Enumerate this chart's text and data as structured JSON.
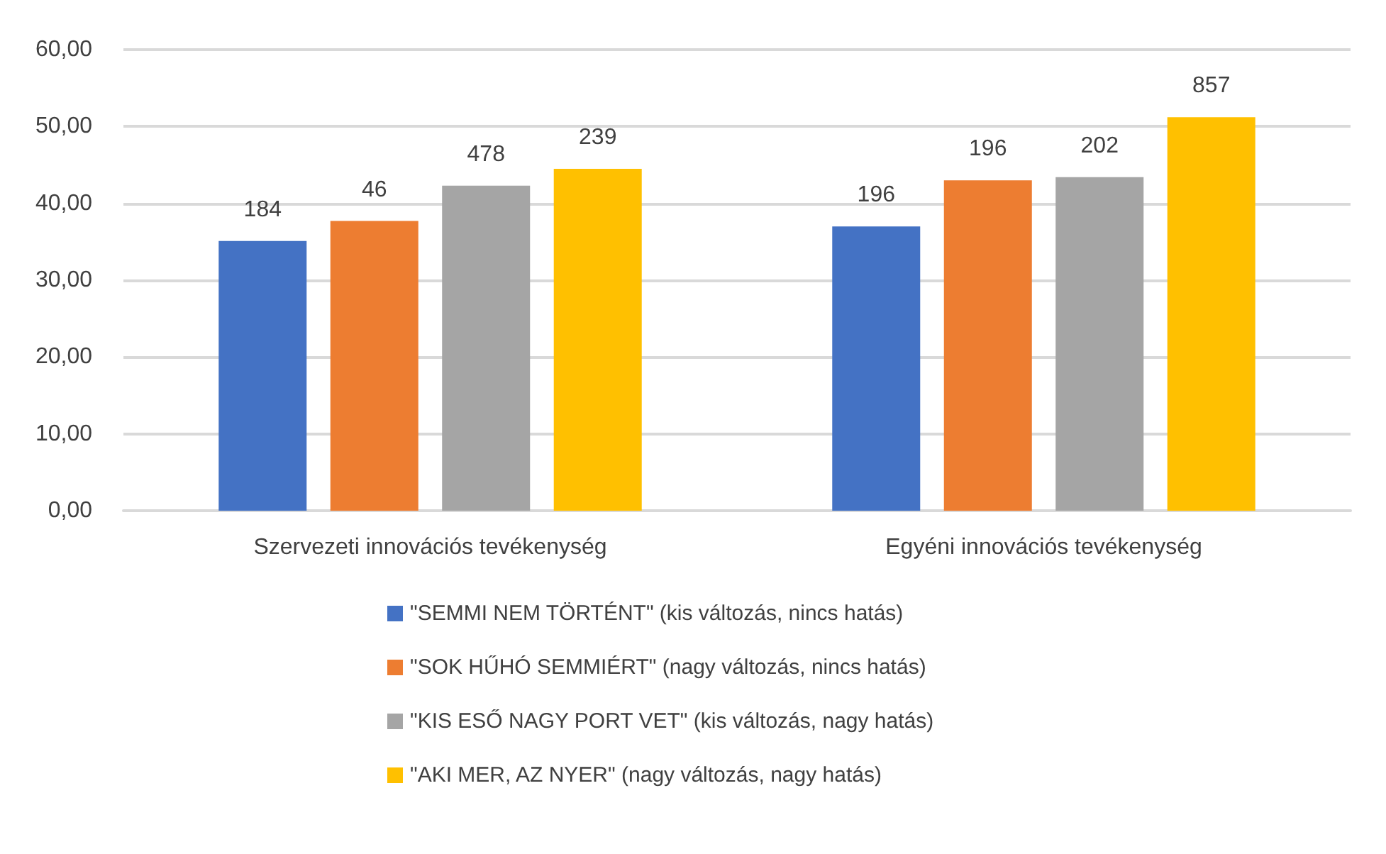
{
  "chart_data": {
    "type": "bar",
    "categories": [
      "Szervezeti innovációs tevékenység",
      "Egyéni innovációs tevékenység"
    ],
    "series": [
      {
        "name": "\"SEMMI NEM TÖRTÉNT\" (kis változás, nincs hatás)",
        "color": "#4472c4",
        "values": [
          35.1,
          37.0
        ]
      },
      {
        "name": "\"SOK HŰHÓ SEMMIÉRT\" (nagy változás, nincs hatás)",
        "color": "#ed7d31",
        "values": [
          37.7,
          43.0
        ]
      },
      {
        "name": "\"KIS ESŐ NAGY PORT VET\" (kis változás, nagy hatás)",
        "color": "#a5a5a5",
        "values": [
          42.3,
          43.4
        ]
      },
      {
        "name": "\"AKI MER, AZ NYER\" (nagy változás, nagy hatás)",
        "color": "#ffc000",
        "values": [
          44.5,
          51.2
        ]
      }
    ],
    "annotations": [
      "184",
      "46",
      "478",
      "239",
      "196",
      "196",
      "202",
      "857"
    ],
    "ylim": [
      0,
      60
    ],
    "yticks": [
      {
        "value": 0,
        "label": "0,00"
      },
      {
        "value": 10,
        "label": "10,00"
      },
      {
        "value": 20,
        "label": "20,00"
      },
      {
        "value": 30,
        "label": "30,00"
      },
      {
        "value": 40,
        "label": "40,00"
      },
      {
        "value": 50,
        "label": "50,00"
      },
      {
        "value": 60,
        "label": "60,00"
      }
    ],
    "grid": "y",
    "legend": "bottom"
  }
}
